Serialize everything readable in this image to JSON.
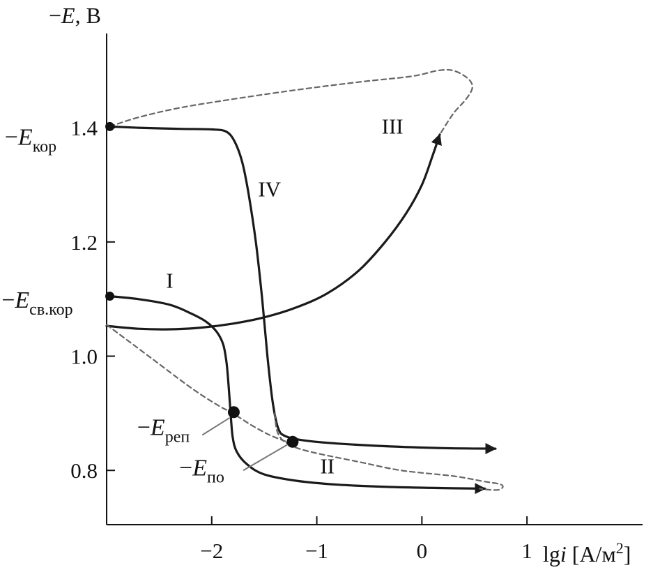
{
  "chart_data": {
    "type": "line",
    "ylabel": {
      "prefix": "−",
      "var": "E",
      "suffix": ", В"
    },
    "xlabel": {
      "pre": "lg",
      "var": "i",
      "post": " [А/м",
      "sup": "2",
      "end": "]"
    },
    "x_ticks": [
      {
        "value": -2,
        "label": "−2"
      },
      {
        "value": -1,
        "label": "−1"
      },
      {
        "value": 0,
        "label": "0"
      },
      {
        "value": 1,
        "label": "1"
      }
    ],
    "y_ticks": [
      {
        "value": 0.8,
        "label": "0.8"
      },
      {
        "value": 1.0,
        "label": "1.0"
      },
      {
        "value": 1.2,
        "label": "1.2"
      },
      {
        "value": 1.4,
        "label": "1.4"
      }
    ],
    "xlim": [
      -3,
      2.1
    ],
    "ylim": [
      0.705,
      1.565
    ],
    "curve_labels": [
      {
        "id": "I",
        "text": "I",
        "x": -2.4,
        "y": 1.12
      },
      {
        "id": "II",
        "text": "II",
        "x": -0.9,
        "y": 0.795
      },
      {
        "id": "III",
        "text": "III",
        "x": -0.28,
        "y": 1.39
      },
      {
        "id": "IV",
        "text": "IV",
        "x": -1.45,
        "y": 1.28
      }
    ],
    "series": [
      {
        "id": "I",
        "style": "solid",
        "arrow": true,
        "points": [
          [
            -2.97,
            1.105
          ],
          [
            -2.7,
            1.1
          ],
          [
            -2.4,
            1.09
          ],
          [
            -2.2,
            1.075
          ],
          [
            -2.05,
            1.06
          ],
          [
            -1.95,
            1.042
          ],
          [
            -1.89,
            1.02
          ],
          [
            -1.86,
            0.99
          ],
          [
            -1.84,
            0.95
          ],
          [
            -1.82,
            0.9
          ],
          [
            -1.8,
            0.858
          ],
          [
            -1.76,
            0.832
          ],
          [
            -1.66,
            0.81
          ],
          [
            -1.5,
            0.793
          ],
          [
            -1.2,
            0.782
          ],
          [
            -0.8,
            0.775
          ],
          [
            -0.3,
            0.771
          ],
          [
            0.2,
            0.769
          ],
          [
            0.6,
            0.768
          ]
        ]
      },
      {
        "id": "III",
        "style": "solid",
        "arrow": true,
        "points": [
          [
            -3,
            1.053
          ],
          [
            -2.7,
            1.048
          ],
          [
            -2.4,
            1.047
          ],
          [
            -2.1,
            1.05
          ],
          [
            -1.8,
            1.057
          ],
          [
            -1.5,
            1.068
          ],
          [
            -1.2,
            1.085
          ],
          [
            -0.9,
            1.11
          ],
          [
            -0.6,
            1.15
          ],
          [
            -0.35,
            1.2
          ],
          [
            -0.15,
            1.25
          ],
          [
            0,
            1.3
          ],
          [
            0.1,
            1.35
          ],
          [
            0.17,
            1.388
          ]
        ]
      },
      {
        "id": "IV",
        "style": "solid",
        "arrow": true,
        "points": [
          [
            -2.97,
            1.402
          ],
          [
            -2.7,
            1.4
          ],
          [
            -2.3,
            1.398
          ],
          [
            -2.0,
            1.397
          ],
          [
            -1.86,
            1.393
          ],
          [
            -1.78,
            1.375
          ],
          [
            -1.71,
            1.34
          ],
          [
            -1.65,
            1.285
          ],
          [
            -1.58,
            1.2
          ],
          [
            -1.52,
            1.1
          ],
          [
            -1.47,
            1.0
          ],
          [
            -1.42,
            0.92
          ],
          [
            -1.37,
            0.875
          ],
          [
            -1.3,
            0.86
          ],
          [
            -1.1,
            0.852
          ],
          [
            -0.8,
            0.847
          ],
          [
            -0.3,
            0.842
          ],
          [
            0.2,
            0.839
          ],
          [
            0.7,
            0.838
          ]
        ]
      },
      {
        "id": "II",
        "style": "dashed",
        "arrow": false,
        "points": [
          [
            -3,
            1.055
          ],
          [
            -2.6,
            1.0
          ],
          [
            -2.2,
            0.945
          ],
          [
            -1.95,
            0.915
          ],
          [
            -1.8,
            0.9
          ],
          [
            -1.62,
            0.879
          ],
          [
            -1.45,
            0.862
          ],
          [
            -1.29,
            0.85
          ],
          [
            -1.2,
            0.84
          ],
          [
            -1.0,
            0.83
          ],
          [
            -0.6,
            0.815
          ],
          [
            -0.2,
            0.8
          ],
          [
            0.3,
            0.79
          ],
          [
            0.58,
            0.781
          ],
          [
            0.74,
            0.776
          ],
          [
            0.77,
            0.771
          ],
          [
            0.73,
            0.766
          ],
          [
            0.65,
            0.766
          ],
          [
            0.55,
            0.768
          ]
        ]
      },
      {
        "id": "upper",
        "style": "dashed",
        "arrow": false,
        "points": [
          [
            -2.97,
            1.402
          ],
          [
            -2.7,
            1.418
          ],
          [
            -2.3,
            1.435
          ],
          [
            -1.8,
            1.45
          ],
          [
            -1.2,
            1.466
          ],
          [
            -0.6,
            1.48
          ],
          [
            -0.1,
            1.49
          ],
          [
            0.15,
            1.5
          ],
          [
            0.3,
            1.5
          ],
          [
            0.44,
            1.486
          ],
          [
            0.48,
            1.47
          ],
          [
            0.42,
            1.45
          ],
          [
            0.3,
            1.425
          ],
          [
            0.17,
            1.388
          ]
        ]
      },
      {
        "id": "IV-dash",
        "style": "dashed",
        "arrow": false,
        "points": [
          [
            -1.4,
            0.9
          ],
          [
            -1.38,
            0.87
          ],
          [
            -1.32,
            0.852
          ],
          [
            -1.22,
            0.843
          ]
        ]
      }
    ],
    "points": [
      {
        "id": "E-kor",
        "x": -2.97,
        "y": 1.402,
        "size": "small"
      },
      {
        "id": "E-sv-kor",
        "x": -2.97,
        "y": 1.105,
        "size": "small"
      },
      {
        "id": "E-rep",
        "x": -1.79,
        "y": 0.902,
        "size": "large"
      },
      {
        "id": "E-po",
        "x": -1.23,
        "y": 0.85,
        "size": "large"
      }
    ],
    "annotations": [
      {
        "id": "E-kor",
        "prefix": "−",
        "var": "E",
        "sub": "кор",
        "tx": -3.97,
        "ty": 1.37
      },
      {
        "id": "E-sv-kor",
        "prefix": "−",
        "var": "E",
        "sub": "св.кор",
        "tx": -4.0,
        "ty": 1.085
      },
      {
        "id": "E-rep",
        "prefix": "−",
        "var": "E",
        "sub": "реп",
        "tx": -2.71,
        "ty": 0.862,
        "leader": [
          [
            -2.09,
            0.862
          ],
          [
            -1.83,
            0.892
          ]
        ]
      },
      {
        "id": "E-po",
        "prefix": "−",
        "var": "E",
        "sub": "по",
        "tx": -2.31,
        "ty": 0.791,
        "leader": [
          [
            -1.7,
            0.8
          ],
          [
            -1.28,
            0.845
          ]
        ]
      }
    ],
    "colors": {
      "line": "#1a1a1a",
      "dashed": "#666666",
      "axis": "#111111"
    }
  }
}
